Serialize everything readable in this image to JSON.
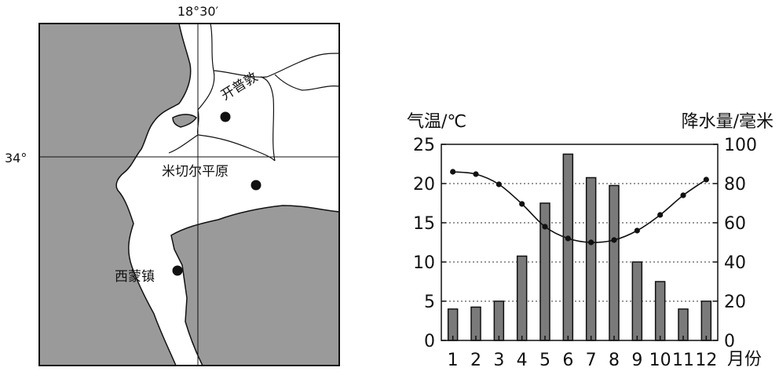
{
  "map": {
    "meridian_label": "18°30′",
    "parallel_label": "34°",
    "places": [
      {
        "name": "开普敦"
      },
      {
        "name": "米切尔平原"
      },
      {
        "name": "西蒙镇"
      }
    ],
    "sea_color": "#9a9a9a",
    "land_color": "#ffffff"
  },
  "chart_data": {
    "type": "bar+line",
    "title": "",
    "ylabel_left": "气温/℃",
    "ylabel_right": "降水量/毫米",
    "xlabel": "月份",
    "categories": [
      "1",
      "2",
      "3",
      "4",
      "5",
      "6",
      "7",
      "8",
      "9",
      "10",
      "11",
      "12"
    ],
    "ylim_left": [
      0,
      25
    ],
    "ylim_right": [
      0,
      100
    ],
    "yticks_left": [
      "0",
      "5",
      "10",
      "15",
      "20",
      "25"
    ],
    "yticks_right": [
      "0",
      "20",
      "40",
      "60",
      "80",
      "100"
    ],
    "grid": "horizontal dotted",
    "series": [
      {
        "type": "bar",
        "axis": "right",
        "values": [
          16,
          17,
          20,
          43,
          70,
          95,
          83,
          79,
          40,
          30,
          16,
          20
        ]
      },
      {
        "type": "line",
        "axis": "left",
        "values": [
          21.5,
          21.2,
          19.9,
          17.4,
          14.5,
          13.0,
          12.5,
          12.8,
          14.0,
          16.0,
          18.5,
          20.5
        ]
      }
    ]
  }
}
